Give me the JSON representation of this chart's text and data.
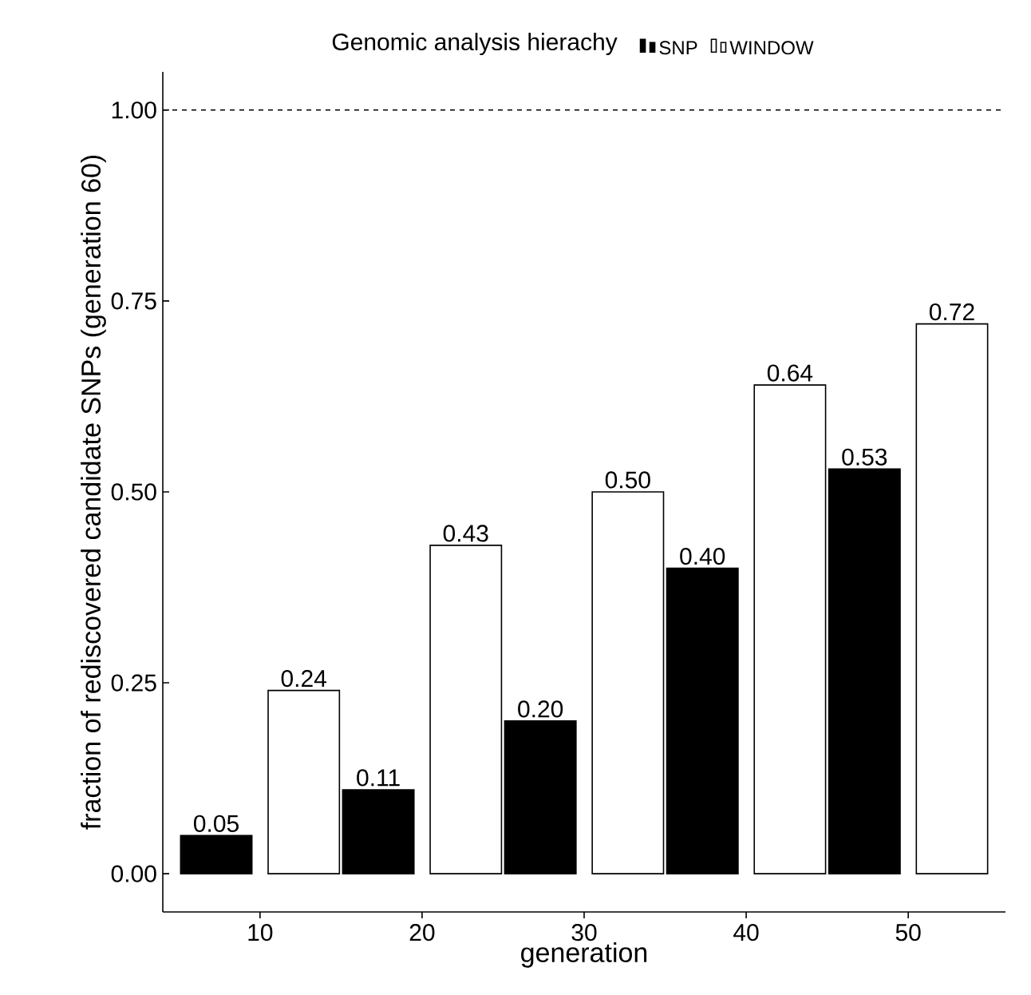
{
  "chart_data": {
    "type": "bar",
    "xlabel": "generation",
    "ylabel": "fraction of rediscovered candidate SNPs (generation 60)",
    "legend_title": "Genomic analysis hierachy",
    "legend": "top",
    "categories": [
      "10",
      "20",
      "30",
      "40",
      "50"
    ],
    "series": [
      {
        "name": "SNP",
        "color": "#000000",
        "values": [
          0.05,
          0.11,
          0.2,
          0.4,
          0.53
        ],
        "value_labels": [
          "0.05",
          "0.11",
          "0.20",
          "0.40",
          "0.53"
        ]
      },
      {
        "name": "WINDOW",
        "color": "#ffffff",
        "values": [
          0.24,
          0.43,
          0.5,
          0.64,
          0.72
        ],
        "value_labels": [
          "0.24",
          "0.43",
          "0.50",
          "0.64",
          "0.72"
        ]
      }
    ],
    "ylim": [
      -0.05,
      1.05
    ],
    "yticks": [
      {
        "value": 0,
        "label": "0.00"
      },
      {
        "value": 0.25,
        "label": "0.25"
      },
      {
        "value": 0.5,
        "label": "0.50"
      },
      {
        "value": 0.75,
        "label": "0.75"
      },
      {
        "value": 1,
        "label": "1.00"
      }
    ],
    "ref_lines": [
      {
        "axis": "y",
        "value": 1,
        "line_style": "dashed",
        "color": "#000000"
      }
    ],
    "grid": false
  }
}
